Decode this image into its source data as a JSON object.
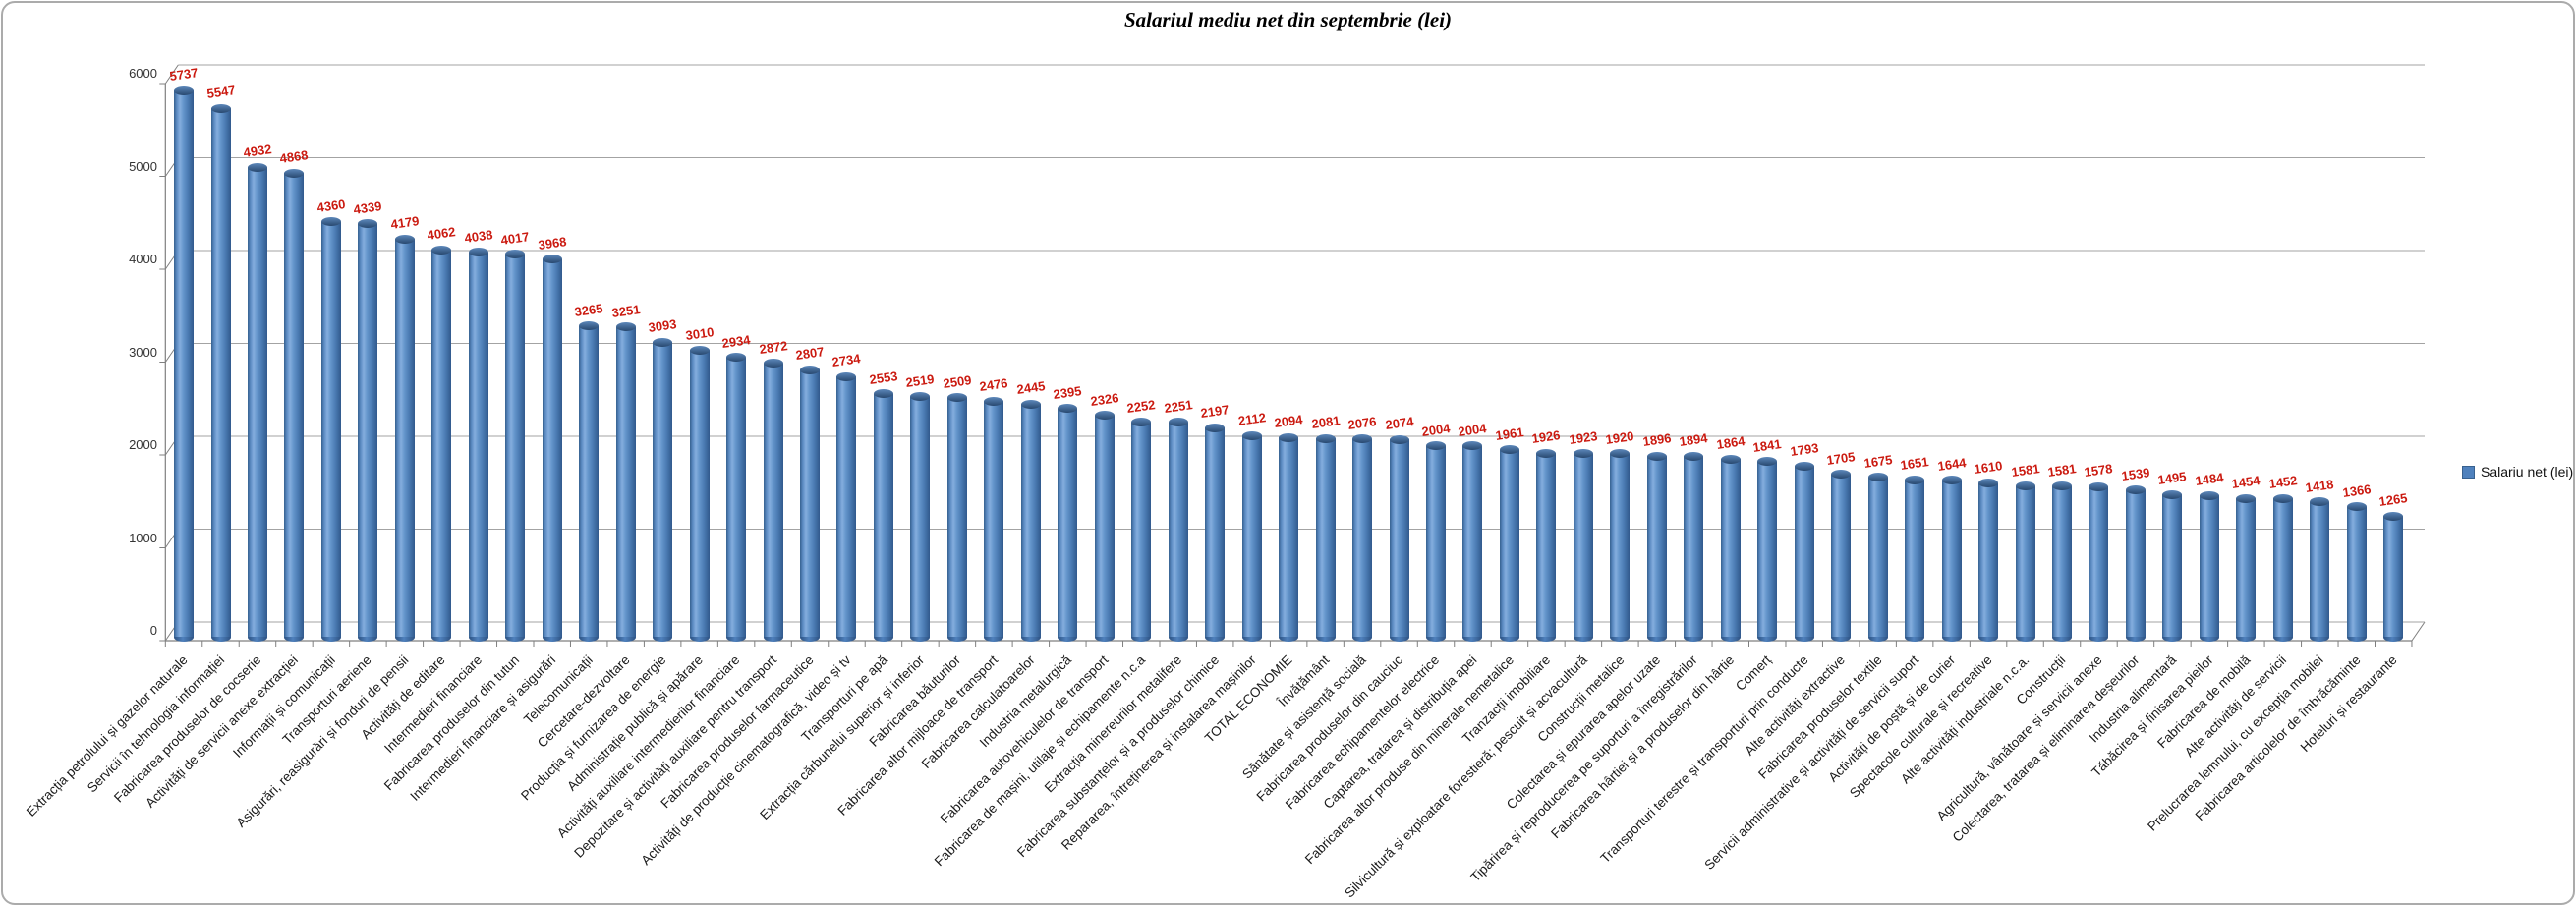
{
  "chart_data": {
    "type": "bar",
    "style": "3d-cylinder",
    "title": "Salariul mediu net din septembrie (lei)",
    "categories": [
      "Extracția petrolului și gazelor naturale",
      "Servicii în tehnologia informației",
      "Fabricarea produselor de cocserie",
      "Activități de servicii anexe extracției",
      "Informații și comunicații",
      "Transporturi aeriene",
      "Asigurări, reasigurări și fonduri de pensii",
      "Activități de editare",
      "Intermedieri financiare",
      "Fabricarea produselor din tutun",
      "Intermedieri financiare și asigurări",
      "Telecomunicații",
      "Cercetare-dezvoltare",
      "Producția și furnizarea de energie",
      "Administrație publică și apărare",
      "Activități auxiliare intermedierilor financiare",
      "Depozitare și activități auxiliare pentru transport",
      "Fabricarea produselor farmaceutice",
      "Activități de producție cinematografică, video și tv",
      "Transporturi pe apă",
      "Extracția cărbunelui superior și inferior",
      "Fabricarea băuturilor",
      "Fabricarea altor mijloace de transport",
      "Fabricarea calculatoarelor",
      "Industria metalurgică",
      "Fabricarea autovehiculelor de transport",
      "Fabricarea de mașini, utilaje și echipamente n.c.a",
      "Extracția minereurilor metalifere",
      "Fabricarea substanțelor și a produselor chimice",
      "Repararea, întreținerea și instalarea mașinilor",
      "TOTAL ECONOMIE",
      "Învățământ",
      "Sănătate și asistență socială",
      "Fabricarea produselor din cauciuc",
      "Fabricarea echipamentelor electrice",
      "Captarea, tratarea și distribuția apei",
      "Fabricarea altor produse din minerale nemetalice",
      "Tranzacții imobiliare",
      "Silvicultură și exploatare forestieră; pescuit și acvacultură",
      "Construcții metalice",
      "Colectarea și epurarea apelor uzate",
      "Tipărirea și reproducerea pe suporturi a înregistrărilor",
      "Fabricarea hârtiei și a produselor din hârtie",
      "Comerț",
      "Transporturi terestre și transporturi prin conducte",
      "Alte activități extractive",
      "Fabricarea produselor textile",
      "Servicii administrative și activități de servicii suport",
      "Activități de poștă și de curier",
      "Spectacole culturale și recreative",
      "Alte activități industriale n.c.a.",
      "Construcții",
      "Agricultură, vânătoare și servicii anexe",
      "Colectarea, tratarea și eliminarea deșeurilor",
      "Industria alimentară",
      "Tăbăcirea și finisarea pieilor",
      "Fabricarea de mobilă",
      "Alte activități de servicii",
      "Prelucrarea lemnului, cu excepția mobilei",
      "Fabricarea articolelor de îmbrăcăminte",
      "Hoteluri și restaurante"
    ],
    "series": [
      {
        "name": "Salariu net (lei)",
        "values": [
          5737,
          5547,
          4932,
          4868,
          4360,
          4339,
          4179,
          4062,
          4038,
          4017,
          3968,
          3265,
          3251,
          3093,
          3010,
          2934,
          2872,
          2807,
          2734,
          2553,
          2519,
          2509,
          2476,
          2445,
          2395,
          2326,
          2252,
          2251,
          2197,
          2112,
          2094,
          2081,
          2076,
          2074,
          2004,
          2004,
          1961,
          1926,
          1923,
          1920,
          1896,
          1894,
          1864,
          1841,
          1793,
          1705,
          1675,
          1651,
          1644,
          1610,
          1581,
          1581,
          1578,
          1539,
          1495,
          1484,
          1454,
          1452,
          1418,
          1366,
          1265
        ]
      }
    ],
    "xlabel": "",
    "ylabel": "",
    "ylim": [
      0,
      6000
    ],
    "yticks": [
      0,
      1000,
      2000,
      3000,
      4000,
      5000,
      6000
    ],
    "grid": true,
    "legend_position": "right",
    "value_labels_shown": true,
    "colors": {
      "bar": "#4f81bd",
      "bar_dark": "#2d5282",
      "bar_light": "#85aede",
      "value_label": "#cb1a10",
      "gridline": "#a3a3a3",
      "axis": "#7f7f7f",
      "category_label": "#1a1a1a",
      "ytick_label": "#333333"
    }
  }
}
